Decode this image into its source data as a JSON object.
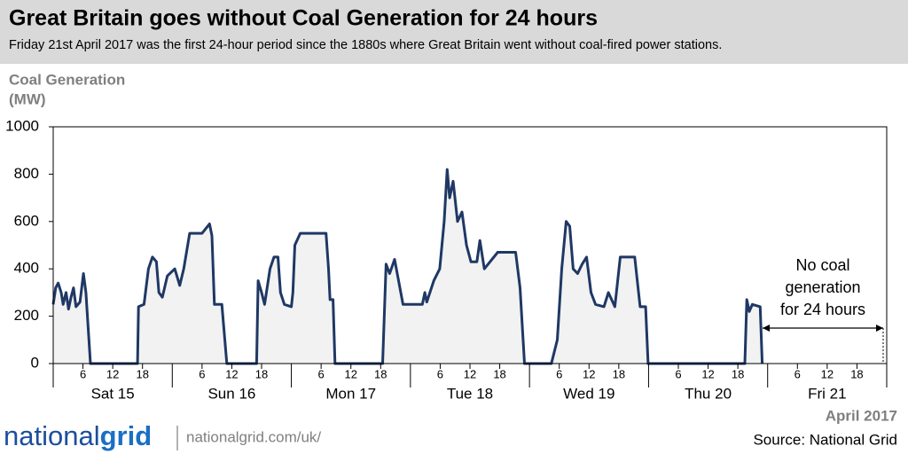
{
  "chart_data": {
    "type": "area",
    "title": "Great Britain goes without Coal Generation for 24 hours",
    "subtitle": "Friday 21st April 2017 was the first 24-hour period since the 1880s where Great Britain went without coal-fired power stations.",
    "ylabel": [
      "Coal Generation",
      "(MW)"
    ],
    "days": [
      "Sat 15",
      "Sun 16",
      "Mon 17",
      "Tue 18",
      "Wed 19",
      "Thu 20",
      "Fri 21"
    ],
    "xlim": [
      0,
      168
    ],
    "xticks": [
      {
        "value": 6,
        "label": "6"
      },
      {
        "value": 12,
        "label": "12"
      },
      {
        "value": 18,
        "label": "18"
      },
      {
        "value": 30,
        "label": "6"
      },
      {
        "value": 36,
        "label": "12"
      },
      {
        "value": 42,
        "label": "18"
      },
      {
        "value": 54,
        "label": "6"
      },
      {
        "value": 60,
        "label": "12"
      },
      {
        "value": 66,
        "label": "18"
      },
      {
        "value": 78,
        "label": "6"
      },
      {
        "value": 84,
        "label": "12"
      },
      {
        "value": 90,
        "label": "18"
      },
      {
        "value": 102,
        "label": "6"
      },
      {
        "value": 108,
        "label": "12"
      },
      {
        "value": 114,
        "label": "18"
      },
      {
        "value": 126,
        "label": "6"
      },
      {
        "value": 132,
        "label": "12"
      },
      {
        "value": 138,
        "label": "18"
      },
      {
        "value": 150,
        "label": "6"
      },
      {
        "value": 156,
        "label": "12"
      },
      {
        "value": 162,
        "label": "18"
      }
    ],
    "ylim": [
      0,
      1000
    ],
    "yticks": [
      0,
      200,
      400,
      600,
      800,
      1000
    ],
    "grid": false,
    "color": "#1f3864",
    "fill": "#f2f2f2",
    "x": [
      0,
      0.5,
      1,
      1.6,
      2,
      2.6,
      3.1,
      3.6,
      4.1,
      4.6,
      5.4,
      6.1,
      6.6,
      7.5,
      17,
      17.2,
      18.3,
      19.2,
      20,
      20.8,
      21.3,
      22,
      23,
      24.5,
      25.5,
      26.3,
      27.5,
      30,
      31.5,
      32,
      32.5,
      34,
      35,
      41,
      41.3,
      42,
      42.6,
      43.7,
      44.5,
      45.3,
      45.8,
      46.6,
      48,
      48.3,
      48.7,
      49.8,
      55,
      55.5,
      55.8,
      56.4,
      56.8,
      66.4,
      67.1,
      67.8,
      68.8,
      70.5,
      73.2,
      74.4,
      74.9,
      75.3,
      76.7,
      77.9,
      78.8,
      79.4,
      79.9,
      80.6,
      81.5,
      82.4,
      83.3,
      84.2,
      85.4,
      86,
      86.9,
      89.6,
      93.2,
      94.1,
      95,
      100.4,
      101.6,
      102.5,
      103.4,
      104.1,
      104.8,
      105.7,
      106.6,
      107.5,
      108.4,
      109.3,
      111,
      111.9,
      113.2,
      114.3,
      117.2,
      118.3,
      119.4,
      119.9,
      139.4,
      139.8,
      140.3,
      140.9,
      142.5,
      142.9
    ],
    "values": [
      250,
      320,
      340,
      300,
      250,
      300,
      230,
      280,
      320,
      240,
      260,
      380,
      300,
      0,
      0,
      240,
      250,
      400,
      450,
      430,
      300,
      280,
      370,
      400,
      330,
      400,
      550,
      550,
      590,
      540,
      250,
      250,
      0,
      0,
      350,
      300,
      250,
      400,
      450,
      450,
      300,
      250,
      240,
      300,
      500,
      550,
      550,
      400,
      270,
      270,
      0,
      0,
      420,
      380,
      440,
      250,
      250,
      250,
      300,
      260,
      350,
      400,
      600,
      820,
      700,
      770,
      600,
      640,
      500,
      430,
      430,
      520,
      400,
      470,
      470,
      320,
      0,
      0,
      100,
      400,
      600,
      580,
      400,
      380,
      420,
      450,
      300,
      250,
      240,
      300,
      240,
      450,
      450,
      240,
      240,
      0,
      0,
      270,
      220,
      250,
      240,
      0
    ],
    "annotation": [
      "No coal",
      "generation",
      "for 24 hours"
    ],
    "date_note": "April 2017",
    "source": "Source: National Grid",
    "brand": [
      "national",
      "grid"
    ],
    "url": "nationalgrid.com/uk/"
  }
}
